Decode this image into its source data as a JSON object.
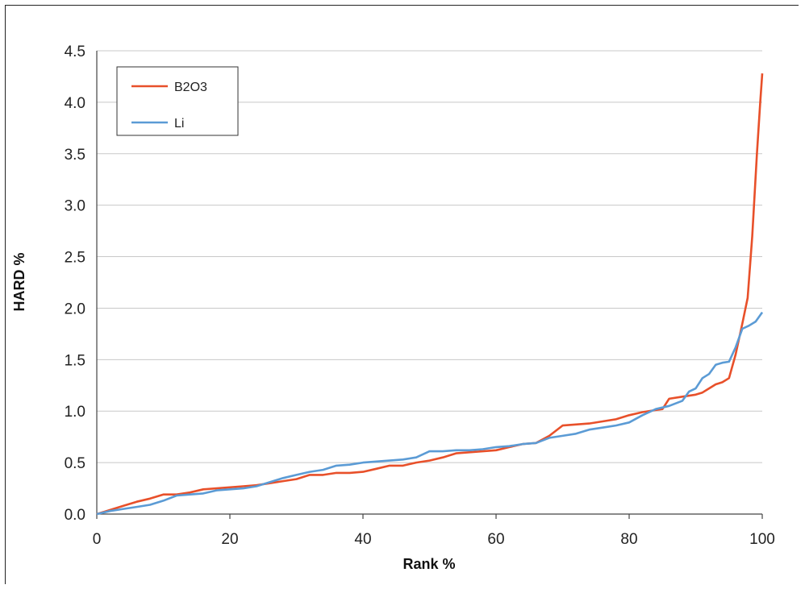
{
  "chart_data": {
    "type": "line",
    "title": "",
    "xlabel": "Rank %",
    "ylabel": "HARD %",
    "xlim": [
      0,
      100
    ],
    "ylim": [
      0,
      4.5
    ],
    "xticks": [
      0,
      20,
      40,
      60,
      80,
      100
    ],
    "yticks": [
      0.0,
      0.5,
      1.0,
      1.5,
      2.0,
      2.5,
      3.0,
      3.5,
      4.0,
      4.5
    ],
    "grid": true,
    "legend_position": "top-left",
    "series": [
      {
        "name": "B2O3",
        "color": "#e8502a",
        "points": [
          [
            0,
            0.0
          ],
          [
            2,
            0.04
          ],
          [
            4,
            0.08
          ],
          [
            6,
            0.12
          ],
          [
            8,
            0.15
          ],
          [
            10,
            0.19
          ],
          [
            12,
            0.19
          ],
          [
            14,
            0.21
          ],
          [
            16,
            0.24
          ],
          [
            18,
            0.25
          ],
          [
            20,
            0.26
          ],
          [
            22,
            0.27
          ],
          [
            24,
            0.28
          ],
          [
            26,
            0.3
          ],
          [
            28,
            0.32
          ],
          [
            30,
            0.34
          ],
          [
            32,
            0.38
          ],
          [
            34,
            0.38
          ],
          [
            36,
            0.4
          ],
          [
            38,
            0.4
          ],
          [
            40,
            0.41
          ],
          [
            42,
            0.44
          ],
          [
            44,
            0.47
          ],
          [
            46,
            0.47
          ],
          [
            48,
            0.5
          ],
          [
            50,
            0.52
          ],
          [
            52,
            0.55
          ],
          [
            54,
            0.59
          ],
          [
            56,
            0.6
          ],
          [
            58,
            0.61
          ],
          [
            60,
            0.62
          ],
          [
            62,
            0.65
          ],
          [
            64,
            0.68
          ],
          [
            66,
            0.69
          ],
          [
            68,
            0.76
          ],
          [
            70,
            0.86
          ],
          [
            72,
            0.87
          ],
          [
            74,
            0.88
          ],
          [
            76,
            0.9
          ],
          [
            78,
            0.92
          ],
          [
            80,
            0.96
          ],
          [
            82,
            0.99
          ],
          [
            84,
            1.01
          ],
          [
            85,
            1.02
          ],
          [
            86,
            1.12
          ],
          [
            88,
            1.14
          ],
          [
            90,
            1.16
          ],
          [
            91,
            1.18
          ],
          [
            92,
            1.22
          ],
          [
            93,
            1.26
          ],
          [
            94,
            1.28
          ],
          [
            95,
            1.32
          ],
          [
            96,
            1.55
          ],
          [
            97,
            1.85
          ],
          [
            97.8,
            2.1
          ],
          [
            98.5,
            2.7
          ],
          [
            99.2,
            3.5
          ],
          [
            99.7,
            4.0
          ],
          [
            100,
            4.28
          ]
        ]
      },
      {
        "name": "Li",
        "color": "#5b9bd5",
        "points": [
          [
            0,
            0.0
          ],
          [
            2,
            0.03
          ],
          [
            4,
            0.05
          ],
          [
            6,
            0.07
          ],
          [
            8,
            0.09
          ],
          [
            10,
            0.13
          ],
          [
            12,
            0.18
          ],
          [
            14,
            0.19
          ],
          [
            16,
            0.2
          ],
          [
            18,
            0.23
          ],
          [
            20,
            0.24
          ],
          [
            22,
            0.25
          ],
          [
            24,
            0.27
          ],
          [
            26,
            0.31
          ],
          [
            28,
            0.35
          ],
          [
            30,
            0.38
          ],
          [
            32,
            0.41
          ],
          [
            34,
            0.43
          ],
          [
            36,
            0.47
          ],
          [
            38,
            0.48
          ],
          [
            40,
            0.5
          ],
          [
            42,
            0.51
          ],
          [
            44,
            0.52
          ],
          [
            46,
            0.53
          ],
          [
            48,
            0.55
          ],
          [
            50,
            0.61
          ],
          [
            52,
            0.61
          ],
          [
            54,
            0.62
          ],
          [
            56,
            0.62
          ],
          [
            58,
            0.63
          ],
          [
            60,
            0.65
          ],
          [
            62,
            0.66
          ],
          [
            64,
            0.68
          ],
          [
            66,
            0.69
          ],
          [
            68,
            0.74
          ],
          [
            70,
            0.76
          ],
          [
            72,
            0.78
          ],
          [
            74,
            0.82
          ],
          [
            76,
            0.84
          ],
          [
            78,
            0.86
          ],
          [
            80,
            0.89
          ],
          [
            82,
            0.96
          ],
          [
            84,
            1.02
          ],
          [
            86,
            1.05
          ],
          [
            88,
            1.1
          ],
          [
            89,
            1.19
          ],
          [
            90,
            1.22
          ],
          [
            91,
            1.32
          ],
          [
            92,
            1.36
          ],
          [
            93,
            1.45
          ],
          [
            94,
            1.47
          ],
          [
            95,
            1.48
          ],
          [
            96,
            1.62
          ],
          [
            97,
            1.8
          ],
          [
            98,
            1.83
          ],
          [
            99,
            1.87
          ],
          [
            100,
            1.96
          ]
        ]
      }
    ]
  }
}
